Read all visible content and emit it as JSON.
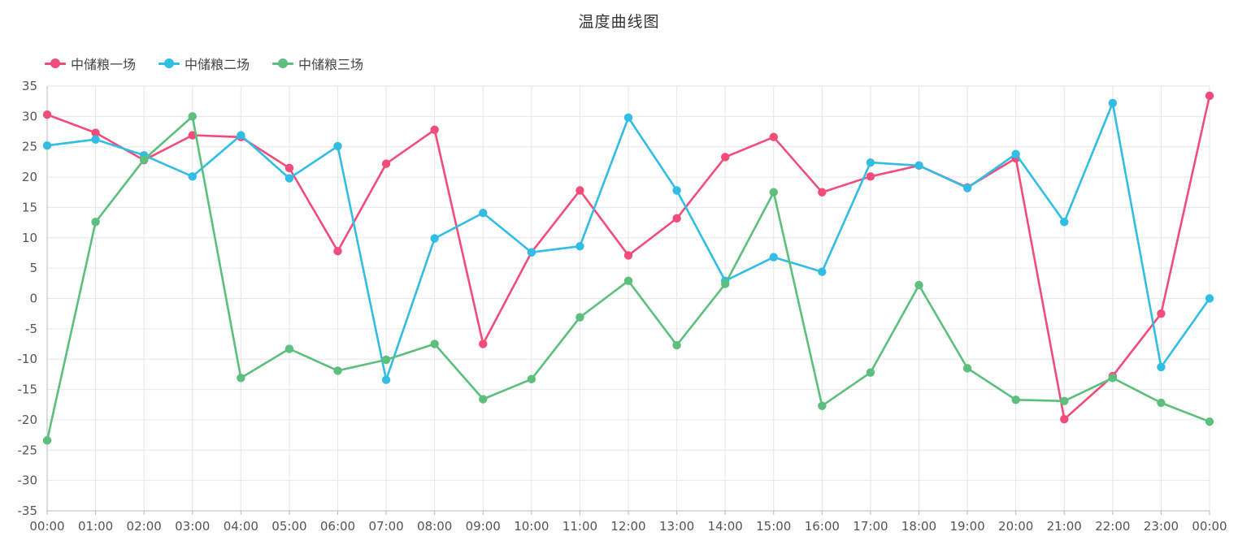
{
  "chart_data": {
    "type": "line",
    "title": "温度曲线图",
    "xlabel": "",
    "ylabel": "",
    "ylim": [
      -35,
      35
    ],
    "y_ticks": [
      35,
      30,
      25,
      20,
      15,
      10,
      5,
      0,
      -5,
      -10,
      -15,
      -20,
      -25,
      -30,
      -35
    ],
    "x": [
      "00:00",
      "01:00",
      "02:00",
      "03:00",
      "04:00",
      "05:00",
      "06:00",
      "07:00",
      "08:00",
      "09:00",
      "10:00",
      "11:00",
      "12:00",
      "13:00",
      "14:00",
      "15:00",
      "16:00",
      "17:00",
      "18:00",
      "19:00",
      "20:00",
      "21:00",
      "22:00",
      "23:00",
      "00:00"
    ],
    "grid": true,
    "legend_position": "top-left",
    "series": [
      {
        "name": "中储粮一场",
        "color": "#f14c7a",
        "values": [
          30.3,
          27.3,
          22.8,
          26.9,
          26.6,
          21.5,
          7.8,
          22.2,
          27.8,
          -7.5,
          7.6,
          17.8,
          7.1,
          13.2,
          23.3,
          26.6,
          17.5,
          20.1,
          21.9,
          18.3,
          23.1,
          -19.9,
          -12.8,
          -2.5,
          33.4
        ]
      },
      {
        "name": "中储粮二场",
        "color": "#31bde4",
        "values": [
          25.2,
          26.2,
          23.6,
          20.1,
          26.9,
          19.8,
          25.1,
          -13.4,
          9.9,
          14.1,
          7.6,
          8.6,
          29.8,
          17.8,
          2.9,
          6.8,
          4.4,
          22.4,
          21.9,
          18.2,
          23.8,
          12.6,
          32.2,
          -11.3,
          0.0
        ]
      },
      {
        "name": "中储粮三场",
        "color": "#5cbf7d",
        "values": [
          -23.4,
          12.6,
          22.9,
          30.0,
          -13.1,
          -8.3,
          -11.9,
          -10.1,
          -7.5,
          -16.6,
          -13.3,
          -3.1,
          2.9,
          -7.7,
          2.4,
          17.5,
          -17.7,
          -12.2,
          2.2,
          -11.5,
          -16.7,
          -16.9,
          -13.1,
          -17.2,
          -20.3
        ]
      }
    ]
  }
}
